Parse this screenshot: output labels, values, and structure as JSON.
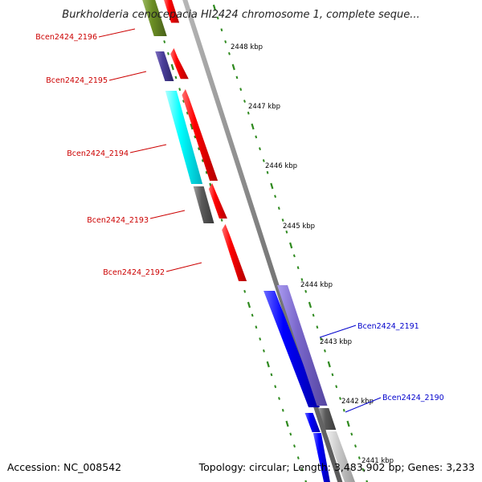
{
  "title": "Burkholderia cenocepacia HI2424 chromosome 1, complete seque...",
  "footer": {
    "accession": "Accession: NC_008542",
    "topology": "Topology: circular; Length: 3,483,902 bp; Genes: 3,233"
  },
  "colors": {
    "backbone": "#7d7d7d",
    "tick": "#2f8a1f",
    "label_left": "#cc0000",
    "label_right": "#0000cc",
    "red": "#ff0000",
    "blue": "#0000ff",
    "cyan": "#00ffff",
    "olive": "#6b8e23",
    "slate": "#4a3f9a",
    "lavender": "#7b68cc",
    "gray": "#5a5a5a",
    "lightgray": "#cccccc"
  },
  "scale_labels": [
    "2448 kbp",
    "2447 kbp",
    "2446 kbp",
    "2445 kbp",
    "2444 kbp",
    "2443 kbp",
    "2442 kbp",
    "2441 kbp"
  ],
  "genes": [
    {
      "label": "Bcen2424_2196",
      "side": "left",
      "strand": "reverse",
      "track": "feature_inner",
      "color": "olive"
    },
    {
      "label": "Bcen2424_2195",
      "side": "left",
      "strand": "reverse",
      "track": "feature_inner",
      "color": "slate"
    },
    {
      "label": "Bcen2424_2194",
      "side": "left",
      "strand": "reverse",
      "track": "feature_inner",
      "color": "cyan"
    },
    {
      "label": "Bcen2424_2193",
      "side": "left",
      "strand": "reverse",
      "track": "feature_inner",
      "color": "gray"
    },
    {
      "label": "Bcen2424_2192",
      "side": "left",
      "strand": "reverse",
      "track": "cds",
      "color": "red"
    },
    {
      "label": "Bcen2424_2191",
      "side": "right",
      "strand": "forward",
      "track": "feature_outer",
      "color": "lavender"
    },
    {
      "label": "Bcen2424_2190",
      "side": "right",
      "strand": "forward",
      "track": "feature_outer",
      "color": "gray"
    }
  ]
}
